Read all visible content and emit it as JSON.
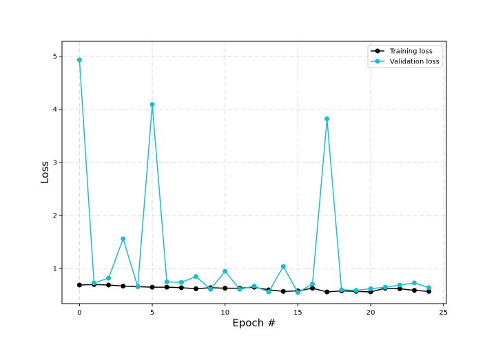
{
  "chart_data": {
    "type": "line",
    "title": "",
    "xlabel": "Epoch #",
    "ylabel": "Loss",
    "xlim": [
      -1.2,
      25.2
    ],
    "ylim": [
      0.34,
      5.28
    ],
    "xticks": [
      0,
      5,
      10,
      15,
      20,
      25
    ],
    "yticks": [
      1,
      2,
      3,
      4,
      5
    ],
    "grid": true,
    "legend_position": "top-right",
    "x": [
      0,
      1,
      2,
      3,
      4,
      5,
      6,
      7,
      8,
      9,
      10,
      11,
      12,
      13,
      14,
      15,
      16,
      17,
      18,
      19,
      20,
      21,
      22,
      23,
      24
    ],
    "series": [
      {
        "name": "Training loss",
        "color": "#000000",
        "values": [
          0.69,
          0.7,
          0.69,
          0.67,
          0.66,
          0.65,
          0.65,
          0.64,
          0.62,
          0.64,
          0.63,
          0.63,
          0.65,
          0.6,
          0.57,
          0.58,
          0.63,
          0.56,
          0.58,
          0.57,
          0.56,
          0.63,
          0.62,
          0.59,
          0.57
        ]
      },
      {
        "name": "Validation loss",
        "color": "#17becf",
        "values": [
          4.93,
          0.73,
          0.82,
          1.56,
          0.66,
          4.09,
          0.75,
          0.74,
          0.85,
          0.61,
          0.95,
          0.61,
          0.67,
          0.56,
          1.04,
          0.55,
          0.71,
          3.82,
          0.6,
          0.59,
          0.62,
          0.65,
          0.69,
          0.73,
          0.64
        ]
      }
    ]
  }
}
